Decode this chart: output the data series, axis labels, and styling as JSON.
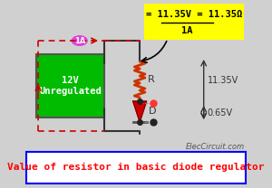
{
  "title": "Value of resistor in basic diode regulator",
  "title_color": "#ff0000",
  "title_bg": "#ffffff",
  "title_border": "#0000ff",
  "website": "ElecCircuit.com",
  "bg_color": "#d0d0d0",
  "formula_text": "= 11.35V = 11.35Ω",
  "formula_denom": "1A",
  "formula_bg": "#ffff00",
  "label_R": "R",
  "label_D": "D",
  "label_12V": "12V\nUnregulated",
  "label_1A": "1A",
  "label_11_35V": "11.35V",
  "label_0_65V": "0.65V",
  "box_green": "#00bb00",
  "resistor_color": "#cc3300",
  "diode_color": "#cc0000",
  "wire_dashed_color": "#cc0000",
  "wire_solid_color": "#333333",
  "dot_color": "#222222",
  "dot_red": "#ff4444",
  "dot_ground": "#222222",
  "current_label_bg": "#dd44dd",
  "current_label_color": "#ffffff"
}
